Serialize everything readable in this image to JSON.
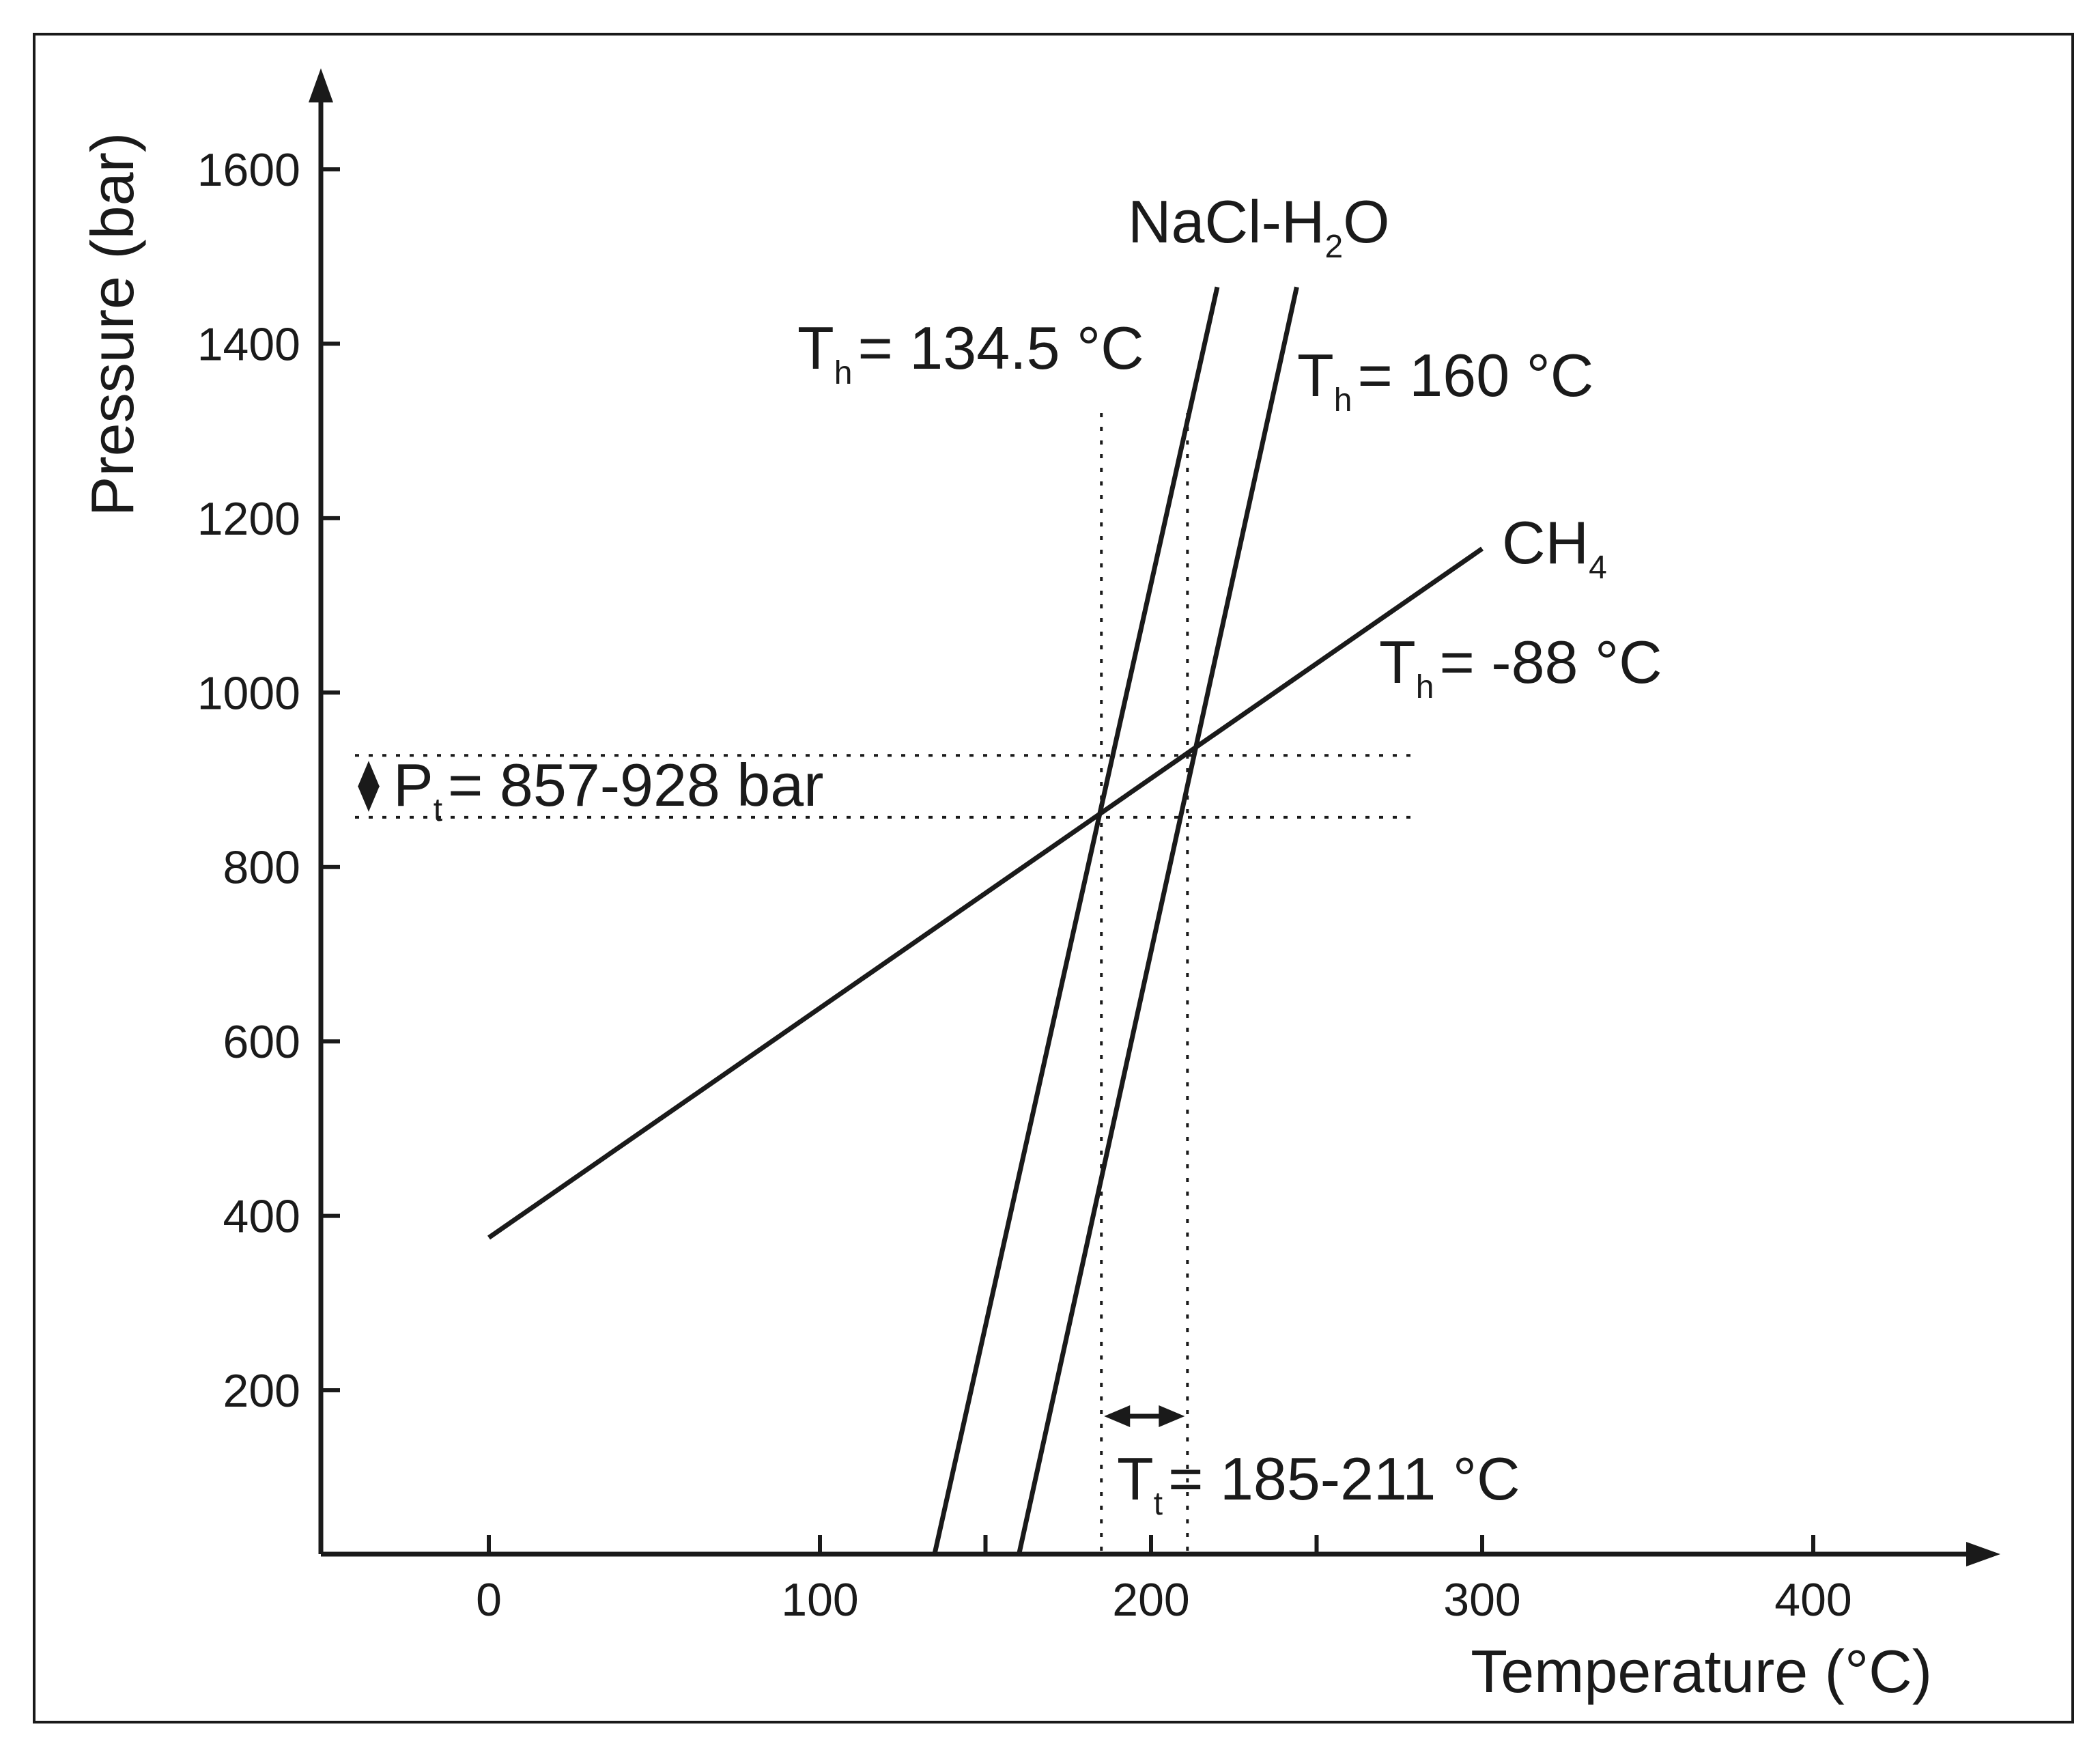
{
  "chart_data": {
    "type": "line",
    "title": "",
    "xlabel": "Temperature (°C)",
    "ylabel": "Pressure (bar)",
    "xlim": [
      -50,
      450
    ],
    "ylim": [
      0,
      1700
    ],
    "x_ticks": [
      0,
      100,
      200,
      300,
      400
    ],
    "y_ticks": [
      200,
      400,
      600,
      800,
      1000,
      1200,
      1400,
      1600
    ],
    "grid": false,
    "series": [
      {
        "name": "CH₄",
        "label_main": "CH",
        "label_sub": "4",
        "th_label": "= -88 °C",
        "points": [
          [
            0,
            375
          ],
          [
            300,
            1165
          ]
        ]
      },
      {
        "name": "NaCl-H₂O",
        "th_label": "= 134.5 °C",
        "points": [
          [
            134.5,
            10
          ],
          [
            220,
            1465
          ]
        ]
      },
      {
        "name": "NaCl-H₂O",
        "th_label": "= 160 °C",
        "points": [
          [
            160,
            10
          ],
          [
            244,
            1465
          ]
        ]
      }
    ],
    "nacl_label": {
      "main1": "NaCl-H",
      "sub": "2",
      "main2": "O"
    },
    "th_symbol": {
      "main": "T",
      "sub": "h"
    },
    "pressure_range": {
      "label_main": "P",
      "label_sub": "t",
      "label_rest": "= 857-928 bar",
      "low": 857,
      "high": 928
    },
    "temperature_range": {
      "label_main": "T",
      "label_sub": "t",
      "label_rest": "= 185-211 °C",
      "low": 185,
      "high": 211
    },
    "intersections": [
      [
        185,
        857
      ],
      [
        211,
        928
      ]
    ]
  }
}
